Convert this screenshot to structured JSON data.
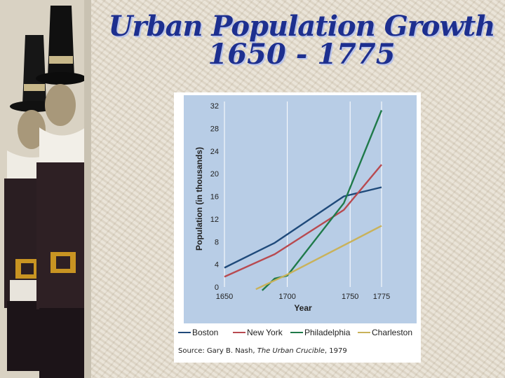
{
  "title": {
    "line1": "Urban Population Growth",
    "line2": "1650 - 1775"
  },
  "source": {
    "prefix": "Source: Gary B. Nash, ",
    "work": "The Urban Crucible",
    "suffix": ", 1979"
  },
  "colors": {
    "title": "#1d2f8f",
    "plot_bg": "#b8cde6",
    "Boston": "#1f4a7a",
    "New York": "#b84a50",
    "Philadelphia": "#1f7a4a",
    "Charleston": "#c9b25a"
  },
  "chart_data": {
    "type": "line",
    "title": "",
    "xlabel": "Year",
    "ylabel": "Population (in thousands)",
    "x_ticks": [
      "1650",
      "1700",
      "1750",
      "1775"
    ],
    "y_ticks": [
      0,
      4,
      8,
      12,
      16,
      20,
      24,
      28,
      32
    ],
    "ylim": [
      0,
      32
    ],
    "xlim": [
      1650,
      1775
    ],
    "grid": "vertical",
    "legend_position": "bottom",
    "series": [
      {
        "name": "Boston",
        "points": [
          [
            1650,
            3.4
          ],
          [
            1690,
            7.8
          ],
          [
            1745,
            16.0
          ],
          [
            1775,
            17.6
          ]
        ]
      },
      {
        "name": "New York",
        "points": [
          [
            1650,
            1.8
          ],
          [
            1690,
            5.8
          ],
          [
            1745,
            13.6
          ],
          [
            1775,
            21.6
          ]
        ]
      },
      {
        "name": "Philadelphia",
        "points": [
          [
            1680,
            -0.6
          ],
          [
            1690,
            1.5
          ],
          [
            1700,
            2.0
          ],
          [
            1745,
            14.8
          ],
          [
            1775,
            31.2
          ]
        ]
      },
      {
        "name": "Charleston",
        "points": [
          [
            1675,
            -0.4
          ],
          [
            1700,
            2.2
          ],
          [
            1775,
            10.8
          ]
        ]
      }
    ]
  }
}
